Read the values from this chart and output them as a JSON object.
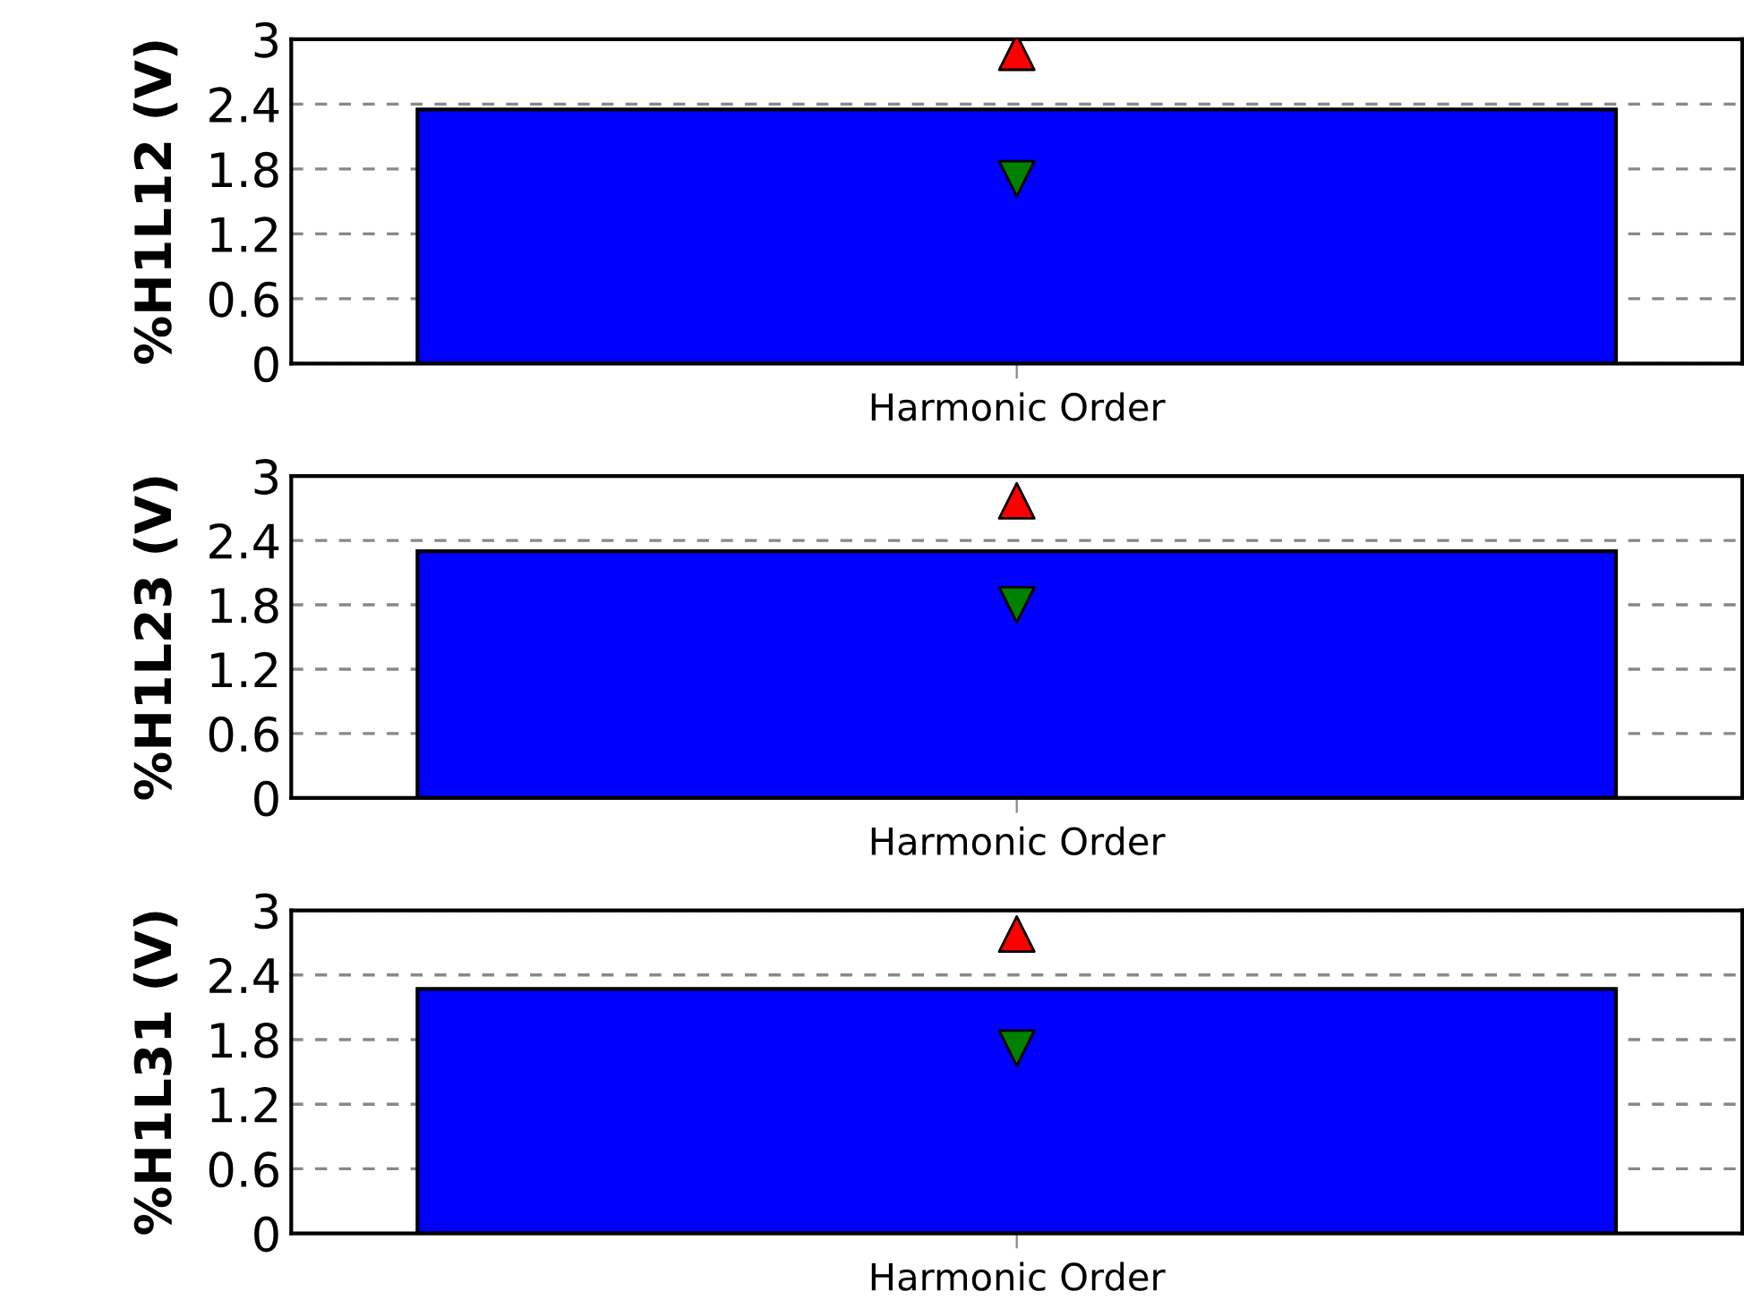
{
  "chart_data": [
    {
      "type": "bar",
      "ylabel": "%H1L12 (V)",
      "xlabel": "Harmonic Order",
      "categories": [
        null
      ],
      "ylim": [
        0,
        3
      ],
      "yticks": [
        0,
        0.6,
        1.2,
        1.8,
        2.4,
        3
      ],
      "grid": "y",
      "series": [
        {
          "color": "#0000ff",
          "values": [
            2.35
          ]
        },
        {
          "type": "scatter",
          "color": "#ff0000",
          "marker": "triangle",
          "values": [
            2.88
          ]
        },
        {
          "type": "scatter",
          "color": "#008000",
          "marker": "triangle_down",
          "values": [
            1.71
          ]
        }
      ]
    },
    {
      "type": "bar",
      "ylabel": "%H1L23 (V)",
      "xlabel": "Harmonic Order",
      "categories": [
        null
      ],
      "ylim": [
        0,
        3
      ],
      "yticks": [
        0,
        0.6,
        1.2,
        1.8,
        2.4,
        3
      ],
      "grid": "y",
      "series": [
        {
          "color": "#0000ff",
          "values": [
            2.3
          ]
        },
        {
          "type": "scatter",
          "color": "#ff0000",
          "marker": "triangle",
          "values": [
            2.77
          ]
        },
        {
          "type": "scatter",
          "color": "#008000",
          "marker": "triangle_down",
          "values": [
            1.8
          ]
        }
      ]
    },
    {
      "type": "bar",
      "ylabel": "%H1L31 (V)",
      "xlabel": "Harmonic Order",
      "categories": [
        null
      ],
      "ylim": [
        0,
        3
      ],
      "yticks": [
        0,
        0.6,
        1.2,
        1.8,
        2.4,
        3
      ],
      "grid": "y",
      "series": [
        {
          "color": "#0000ff",
          "values": [
            2.27
          ]
        },
        {
          "type": "scatter",
          "color": "#ff0000",
          "marker": "triangle",
          "values": [
            2.78
          ]
        },
        {
          "type": "scatter",
          "color": "#008000",
          "marker": "triangle_down",
          "values": [
            1.72
          ]
        }
      ]
    }
  ]
}
